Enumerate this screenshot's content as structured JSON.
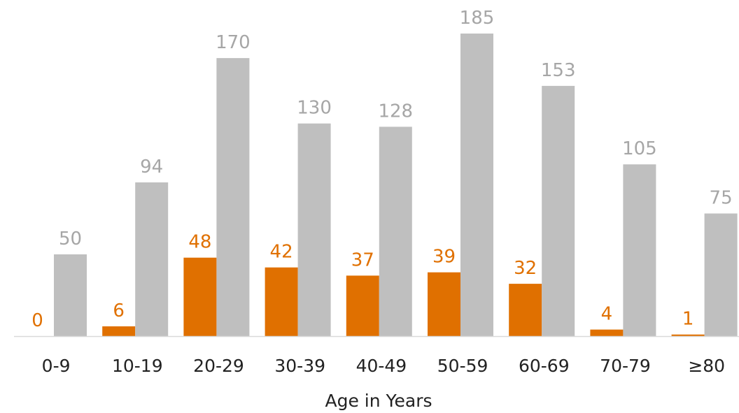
{
  "chart_data": {
    "type": "bar",
    "title": "",
    "xlabel": "Age in Years",
    "ylabel": "",
    "categories": [
      "0-9",
      "10-19",
      "20-29",
      "30-39",
      "40-49",
      "50-59",
      "60-69",
      "70-79",
      "≥80"
    ],
    "series": [
      {
        "values": [
          0,
          6,
          48,
          42,
          37,
          39,
          32,
          4,
          1
        ],
        "color": "#E07000"
      },
      {
        "values": [
          50,
          94,
          170,
          130,
          128,
          185,
          153,
          105,
          75
        ],
        "color": "#BFBFBF"
      }
    ],
    "ylim": [
      0,
      185
    ],
    "grid": false,
    "legend": "none",
    "data_labels": true,
    "baseline_color": "#D9D9D9",
    "label_colors": [
      "#E07000",
      "#A6A6A6"
    ]
  }
}
